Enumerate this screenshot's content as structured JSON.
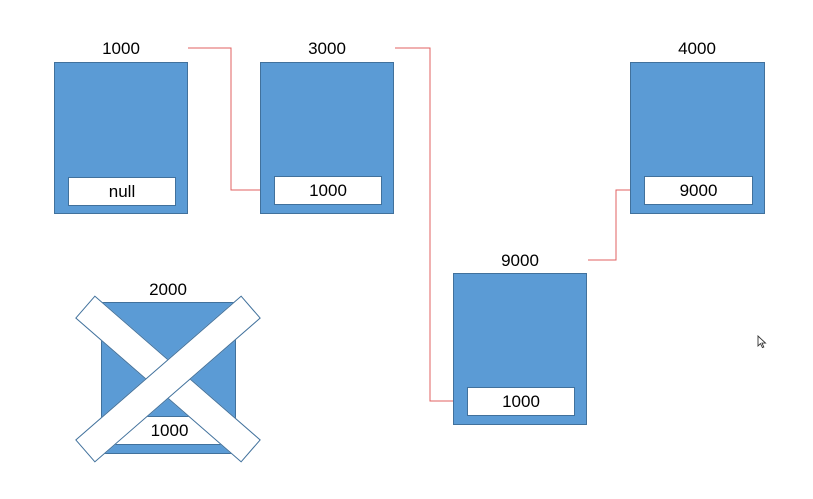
{
  "colors": {
    "node_fill": "#5b9bd5",
    "node_border": "#41719c",
    "field_fill": "#ffffff",
    "connector": "#e06060"
  },
  "nodes": [
    {
      "id": "node-1000",
      "address": "1000",
      "next": "null"
    },
    {
      "id": "node-3000",
      "address": "3000",
      "next": "1000"
    },
    {
      "id": "node-4000",
      "address": "4000",
      "next": "9000"
    },
    {
      "id": "node-9000",
      "address": "9000",
      "next": "1000"
    },
    {
      "id": "node-2000",
      "address": "2000",
      "next": "1000",
      "crossed_out": true
    }
  ],
  "icons": {
    "cursor": "mouse-pointer-icon",
    "cross": "cross-out-icon"
  }
}
